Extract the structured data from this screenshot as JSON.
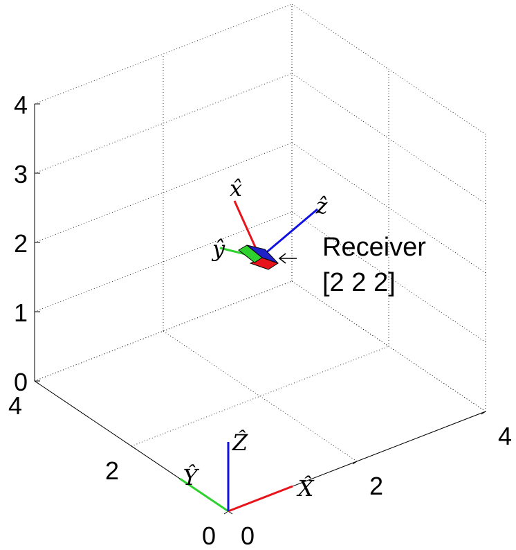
{
  "chart_data": {
    "type": "3d-axes",
    "title": "",
    "xlim": [
      0,
      4
    ],
    "ylim": [
      0,
      4
    ],
    "zlim": [
      0,
      4
    ],
    "grid": true,
    "ticks": {
      "x": [
        "0",
        "2",
        "4"
      ],
      "y": [
        "0",
        "2",
        "4"
      ],
      "z": [
        "0",
        "1",
        "2",
        "3",
        "4"
      ]
    },
    "world_frame": {
      "origin": [
        0,
        0,
        0
      ],
      "axes": [
        {
          "label": "X̂",
          "color": "#e8141c"
        },
        {
          "label": "Ŷ",
          "color": "#2fd12f"
        },
        {
          "label": "Ẑ",
          "color": "#1010e0"
        }
      ]
    },
    "receiver": {
      "position": [
        2,
        2,
        2
      ],
      "annotation_name": "Receiver",
      "annotation_coords": "[2 2 2]",
      "axes": [
        {
          "label": "x̂",
          "color": "#e8141c"
        },
        {
          "label": "ŷ",
          "color": "#2fd12f"
        },
        {
          "label": "ẑ",
          "color": "#1010e0"
        }
      ]
    }
  }
}
